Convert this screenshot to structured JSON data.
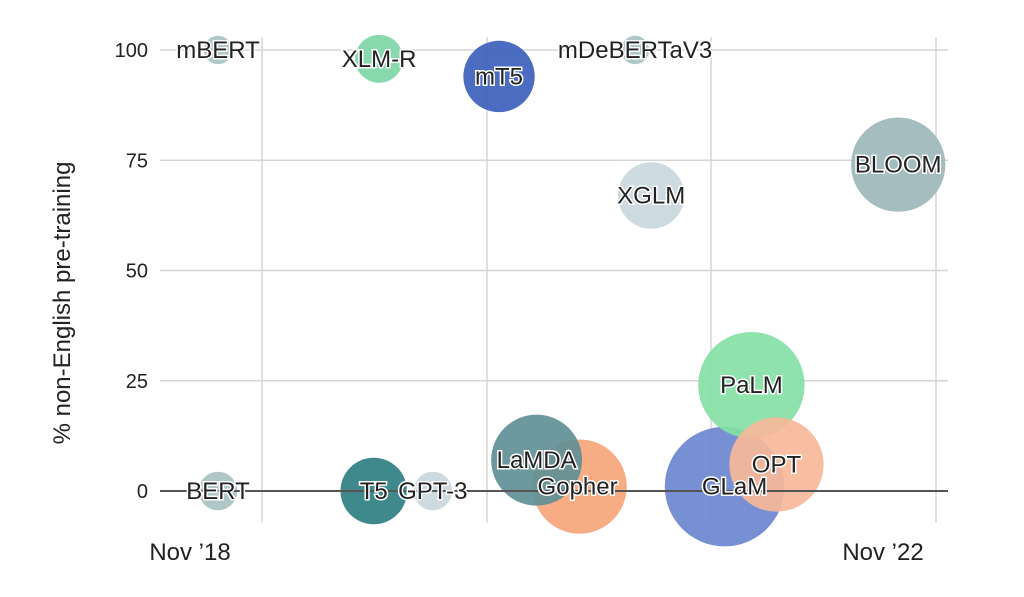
{
  "chart_data": {
    "type": "scatter",
    "subtype": "bubble",
    "title": "",
    "xlabel": "",
    "ylabel": "% non-English pre-training",
    "x_ticks": [
      "Nov ’18",
      "Nov ’22"
    ],
    "y_ticks": [
      0,
      25,
      50,
      75,
      100
    ],
    "ylim": [
      -4,
      102
    ],
    "grid": true,
    "points": [
      {
        "label": "mBERT",
        "x": 0.0,
        "y": 100,
        "size": 0.3,
        "color": "#a8c3c2"
      },
      {
        "label": "XLM-R",
        "x": 0.9,
        "y": 98,
        "size": 2,
        "color": "#7ed6a6"
      },
      {
        "label": "mT5",
        "x": 1.57,
        "y": 94,
        "size": 6,
        "color": "#3d5fbd"
      },
      {
        "label": "mDeBERTaV3",
        "x": 2.33,
        "y": 100,
        "size": 0.3,
        "color": "#a8c3c2"
      },
      {
        "label": "BLOOM",
        "x": 3.8,
        "y": 74,
        "size": 12,
        "color": "#9db7b9"
      },
      {
        "label": "XGLM",
        "x": 2.42,
        "y": 67,
        "size": 5,
        "color": "#c9d8de"
      },
      {
        "label": "PaLM",
        "x": 2.98,
        "y": 24,
        "size": 16,
        "color": "#86dfa5"
      },
      {
        "label": "LaMDA",
        "x": 1.78,
        "y": 7,
        "size": 11,
        "color": "#5f8f96"
      },
      {
        "label": "Gopher",
        "x": 2.02,
        "y": 1,
        "size": 12,
        "color": "#f7a57a"
      },
      {
        "label": "GLaM",
        "x": 2.83,
        "y": 1,
        "size": 21,
        "color": "#6b86cf"
      },
      {
        "label": "OPT",
        "x": 3.12,
        "y": 6,
        "size": 12,
        "color": "#f7b899"
      },
      {
        "label": "BERT",
        "x": 0.0,
        "y": 0,
        "size": 1,
        "color": "#a8c3c2"
      },
      {
        "label": "T5",
        "x": 0.87,
        "y": 0,
        "size": 5,
        "color": "#2f7f82"
      },
      {
        "label": "GPT-3",
        "x": 1.2,
        "y": 0,
        "size": 1,
        "color": "#c9d8de"
      }
    ]
  }
}
